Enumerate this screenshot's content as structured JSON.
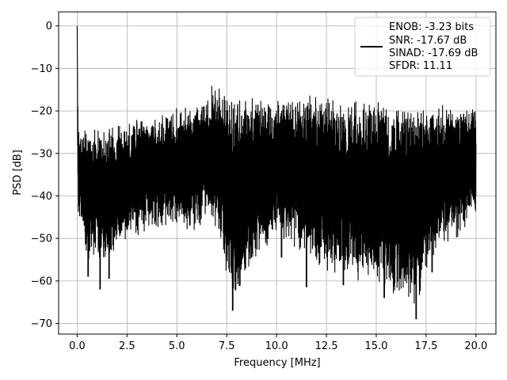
{
  "chart_data": {
    "type": "line",
    "title": "",
    "xlabel": "Frequency [MHz]",
    "ylabel": "PSD [dB]",
    "xlim": [
      -0.93,
      21.0
    ],
    "ylim": [
      -72.5,
      3.3
    ],
    "xticks": [
      0.0,
      2.5,
      5.0,
      7.5,
      10.0,
      12.5,
      15.0,
      17.5,
      20.0
    ],
    "xtick_labels": [
      "0.0",
      "2.5",
      "5.0",
      "7.5",
      "10.0",
      "12.5",
      "15.0",
      "17.5",
      "20.0"
    ],
    "yticks": [
      0,
      -10,
      -20,
      -30,
      -40,
      -50,
      -60,
      -70
    ],
    "ytick_labels": [
      "0",
      "−10",
      "−20",
      "−30",
      "−40",
      "−50",
      "−60",
      "−70"
    ],
    "grid": true,
    "legend_position": "top-right",
    "series": [
      {
        "color": "#000000",
        "x": [
          0.0,
          0.05,
          0.1,
          0.3,
          0.55,
          1.0,
          1.15,
          1.6,
          2.5,
          5.0,
          6.0,
          6.85,
          7.8,
          10.0,
          11.5,
          13.35,
          15.4,
          17.0,
          17.8,
          20.0
        ],
        "upper": [
          0.0,
          -24,
          -23,
          -24,
          -24,
          -24,
          -23,
          -23,
          -22,
          -19,
          -18,
          -13,
          -16,
          -17,
          -16,
          -17,
          -17,
          -18,
          -18,
          -19
        ],
        "lower": [
          -20,
          -48,
          -50,
          -52,
          -59,
          -55,
          -62,
          -59,
          -53,
          -50,
          -51,
          -49,
          -67,
          -51,
          -58,
          -61,
          -64,
          -69,
          -58,
          -48
        ]
      }
    ],
    "legend_lines": [
      "ENOB: -3.23 bits",
      "SNR: -17.67 dB",
      "SINAD: -17.69 dB",
      "SFDR: 11.11"
    ],
    "spikes": [
      {
        "x": 0.55,
        "y": -59
      },
      {
        "x": 1.15,
        "y": -62
      },
      {
        "x": 1.6,
        "y": -59.5
      },
      {
        "x": 7.8,
        "y": -67
      },
      {
        "x": 10.25,
        "y": -54.5
      },
      {
        "x": 11.5,
        "y": -61.5
      },
      {
        "x": 13.35,
        "y": -61
      },
      {
        "x": 15.4,
        "y": -64
      },
      {
        "x": 17.0,
        "y": -69
      },
      {
        "x": 17.8,
        "y": -58
      }
    ]
  }
}
